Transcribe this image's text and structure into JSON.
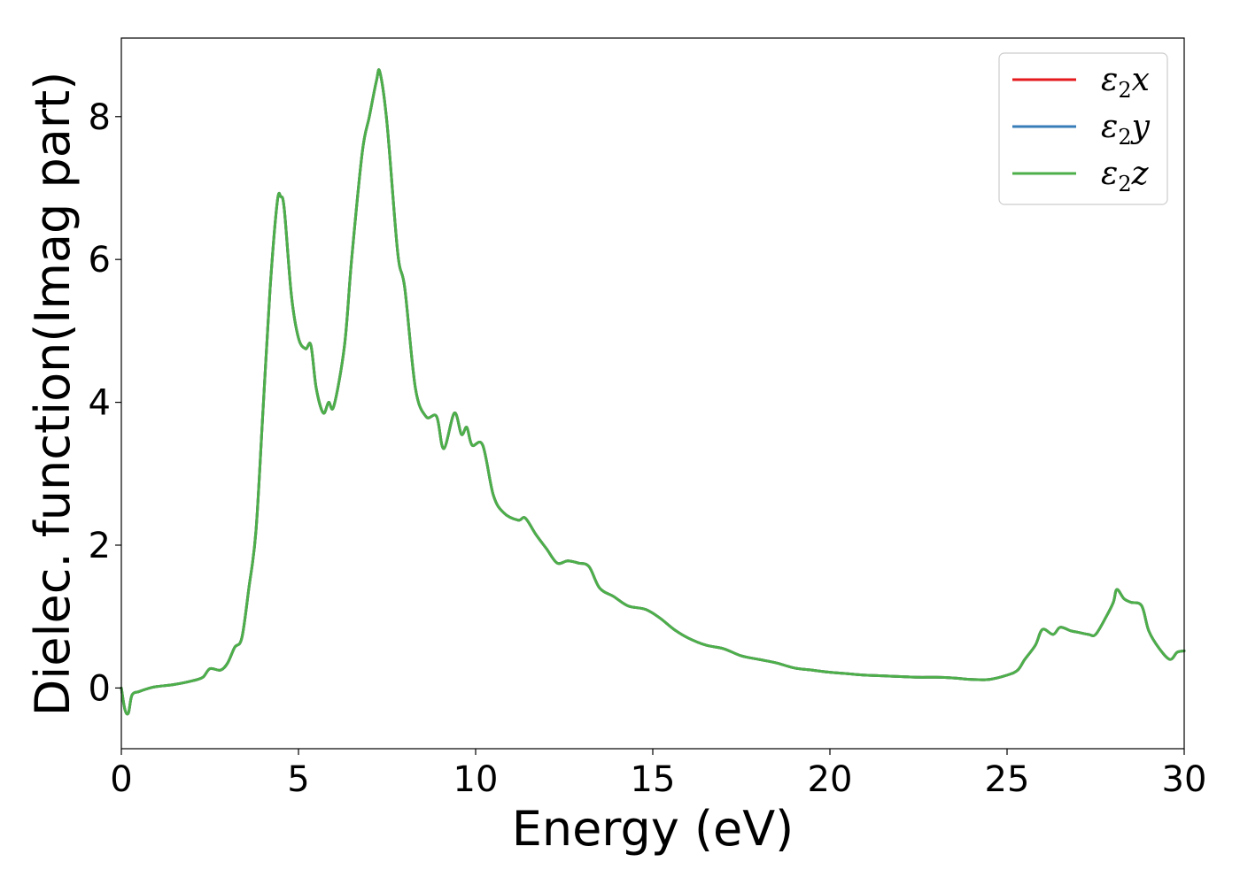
{
  "chart_data": {
    "type": "line",
    "title": "",
    "xlabel": "Energy (eV)",
    "ylabel": "Dielec. function(Imag part)",
    "xlim": [
      0,
      30
    ],
    "ylim": [
      -0.85,
      9.1
    ],
    "xticks": [
      0,
      5,
      10,
      15,
      20,
      25,
      30
    ],
    "yticks": [
      0,
      2,
      4,
      6,
      8
    ],
    "xtick_labels": [
      "0",
      "5",
      "10",
      "15",
      "20",
      "25",
      "30"
    ],
    "ytick_labels": [
      "0",
      "2",
      "4",
      "6",
      "8"
    ],
    "grid": false,
    "legend_position": "top-right",
    "series": [
      {
        "name": "ε2x",
        "legend_base": "ε",
        "legend_sub": "2",
        "legend_var": "x",
        "color": "#e41a1c"
      },
      {
        "name": "ε2y",
        "legend_base": "ε",
        "legend_sub": "2",
        "legend_var": "y",
        "color": "#377eb8"
      },
      {
        "name": "ε2z",
        "legend_base": "ε",
        "legend_sub": "2",
        "legend_var": "z",
        "color": "#4daf4a"
      }
    ],
    "x": [
      0.0,
      0.1,
      0.2,
      0.3,
      0.5,
      0.8,
      1.0,
      1.5,
      2.0,
      2.3,
      2.5,
      2.8,
      3.0,
      3.2,
      3.4,
      3.6,
      3.8,
      4.0,
      4.2,
      4.4,
      4.5,
      4.6,
      4.8,
      5.0,
      5.2,
      5.35,
      5.5,
      5.7,
      5.85,
      6.0,
      6.3,
      6.5,
      6.8,
      7.0,
      7.2,
      7.3,
      7.5,
      7.8,
      8.0,
      8.3,
      8.6,
      8.9,
      9.1,
      9.4,
      9.6,
      9.75,
      9.9,
      10.2,
      10.5,
      10.8,
      11.2,
      11.4,
      11.7,
      12.0,
      12.3,
      12.6,
      12.9,
      13.2,
      13.5,
      13.9,
      14.3,
      14.8,
      15.2,
      15.6,
      16.0,
      16.5,
      17.0,
      17.5,
      18.0,
      18.5,
      19.0,
      19.5,
      20.0,
      20.5,
      21.0,
      21.5,
      22.0,
      22.5,
      23.0,
      23.5,
      24.0,
      24.5,
      25.0,
      25.3,
      25.5,
      25.8,
      26.0,
      26.3,
      26.5,
      26.8,
      27.0,
      27.3,
      27.5,
      27.8,
      28.0,
      28.1,
      28.3,
      28.5,
      28.8,
      29.0,
      29.3,
      29.6,
      29.8,
      30.0
    ],
    "values": [
      0.0,
      -0.3,
      -0.35,
      -0.1,
      -0.05,
      0.0,
      0.02,
      0.05,
      0.1,
      0.15,
      0.27,
      0.25,
      0.35,
      0.57,
      0.7,
      1.4,
      2.2,
      3.9,
      5.6,
      6.8,
      6.88,
      6.7,
      5.5,
      4.9,
      4.75,
      4.8,
      4.2,
      3.85,
      4.0,
      3.95,
      4.8,
      6.0,
      7.5,
      8.0,
      8.5,
      8.62,
      7.9,
      6.1,
      5.6,
      4.2,
      3.8,
      3.8,
      3.35,
      3.85,
      3.55,
      3.65,
      3.4,
      3.4,
      2.7,
      2.45,
      2.35,
      2.38,
      2.15,
      1.95,
      1.75,
      1.78,
      1.75,
      1.7,
      1.4,
      1.28,
      1.15,
      1.1,
      0.98,
      0.82,
      0.7,
      0.6,
      0.55,
      0.45,
      0.4,
      0.35,
      0.28,
      0.25,
      0.22,
      0.2,
      0.18,
      0.17,
      0.16,
      0.15,
      0.15,
      0.14,
      0.12,
      0.12,
      0.18,
      0.25,
      0.4,
      0.6,
      0.82,
      0.75,
      0.85,
      0.8,
      0.78,
      0.75,
      0.75,
      1.0,
      1.2,
      1.38,
      1.25,
      1.2,
      1.15,
      0.8,
      0.55,
      0.4,
      0.5,
      0.52
    ]
  }
}
